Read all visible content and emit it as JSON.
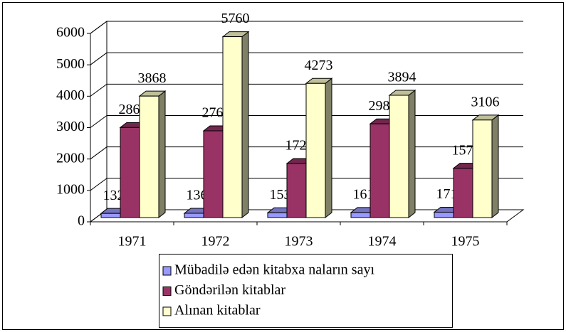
{
  "chart_data": {
    "type": "bar3d",
    "categories": [
      "1971",
      "1972",
      "1973",
      "1974",
      "1975"
    ],
    "series": [
      {
        "name": "Mübadilə edən kitabxa naların sayı",
        "color": "#9999ff",
        "values": [
          132,
          136,
          153,
          161,
          171
        ]
      },
      {
        "name": "Göndərilən kitablar",
        "color": "#993366",
        "values": [
          2868,
          2762,
          1721,
          2984,
          1570
        ]
      },
      {
        "name": "Alınan kitablar",
        "color": "#ffffcc",
        "values": [
          3868,
          5760,
          4273,
          3894,
          3106
        ]
      }
    ],
    "ylim": [
      0,
      6000
    ],
    "yticks": [
      0,
      1000,
      2000,
      3000,
      4000,
      5000,
      6000
    ],
    "grid": true,
    "legend": "bottom"
  }
}
